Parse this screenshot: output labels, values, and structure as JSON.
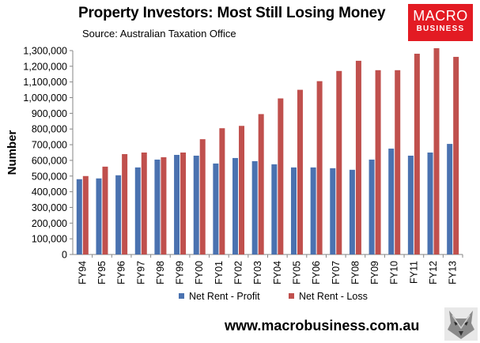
{
  "header": {
    "title": "Property Investors: Most Still Losing Money",
    "subtitle": "Source: Australian Taxation Office"
  },
  "logo": {
    "line1": "MACRO",
    "line2": "BUSINESS"
  },
  "footer": {
    "url": "www.macrobusiness.com.au"
  },
  "colors": {
    "profit": "#4a72b0",
    "loss": "#c0504d",
    "logo_bg": "#e31b23"
  },
  "chart_data": {
    "type": "bar",
    "title": "Property Investors: Most Still Losing Money",
    "xlabel": "",
    "ylabel": "Number",
    "ylim": [
      0,
      1300000
    ],
    "ytick_step": 100000,
    "yticks": [
      "0",
      "100,000",
      "200,000",
      "300,000",
      "400,000",
      "500,000",
      "600,000",
      "700,000",
      "800,000",
      "900,000",
      "1,000,000",
      "1,100,000",
      "1,200,000",
      "1,300,000"
    ],
    "grid": false,
    "legend": "bottom",
    "categories": [
      "FY94",
      "FY95",
      "FY96",
      "FY97",
      "FY98",
      "FY99",
      "FY00",
      "FY01",
      "FY02",
      "FY03",
      "FY04",
      "FY05",
      "FY06",
      "FY07",
      "FY08",
      "FY09",
      "FY10",
      "FY11",
      "FY12",
      "FY13"
    ],
    "series": [
      {
        "name": "Net Rent - Profit",
        "color": "#4a72b0",
        "values": [
          480000,
          485000,
          505000,
          555000,
          605000,
          635000,
          630000,
          580000,
          615000,
          595000,
          575000,
          555000,
          555000,
          550000,
          540000,
          605000,
          675000,
          630000,
          650000,
          705000
        ]
      },
      {
        "name": "Net Rent - Loss",
        "color": "#c0504d",
        "values": [
          500000,
          560000,
          640000,
          650000,
          620000,
          650000,
          735000,
          805000,
          820000,
          895000,
          995000,
          1050000,
          1105000,
          1170000,
          1235000,
          1175000,
          1175000,
          1280000,
          1315000,
          1260000
        ]
      }
    ]
  }
}
